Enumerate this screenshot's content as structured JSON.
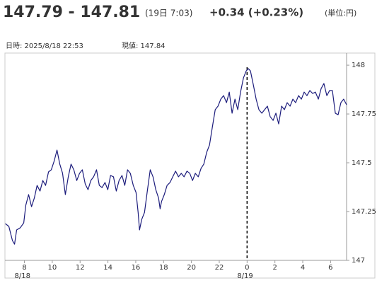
{
  "chart_data": {
    "type": "line",
    "title": "147.79 - 147.81",
    "subtitle": "(19日 7:03)",
    "change": "+0.34 (+0.23%)",
    "unit": "(単位:円)",
    "info_time": "日時: 2025/8/18 22:53",
    "info_price": "現値: 147.84",
    "xlim": [
      6.6,
      31.15
    ],
    "ylim": [
      147,
      148.062
    ],
    "xticks": [
      8,
      10,
      12,
      14,
      16,
      18,
      20,
      22,
      {
        "value": 24,
        "label": "0"
      },
      {
        "value": 26,
        "label": "2"
      },
      {
        "value": 28,
        "label": "4"
      },
      {
        "value": 30,
        "label": "6"
      }
    ],
    "date_labels": [
      {
        "value": 8,
        "label": "8/18"
      },
      {
        "value": 24,
        "label": "8/19"
      }
    ],
    "day_divider": 24,
    "yticks": [
      147,
      147.25,
      147.5,
      147.75,
      148
    ],
    "series": [
      {
        "color": "#1c1c7c",
        "x": [
          6.63,
          6.88,
          7.14,
          7.29,
          7.44,
          7.7,
          7.95,
          8.1,
          8.3,
          8.51,
          8.71,
          8.91,
          9.12,
          9.32,
          9.52,
          9.73,
          9.93,
          10.13,
          10.34,
          10.54,
          10.74,
          10.94,
          11.15,
          11.35,
          11.55,
          11.76,
          11.96,
          12.16,
          12.37,
          12.57,
          12.77,
          12.97,
          13.18,
          13.38,
          13.58,
          13.79,
          13.99,
          14.19,
          14.4,
          14.6,
          14.8,
          15.01,
          15.21,
          15.41,
          15.61,
          15.82,
          16.02,
          16.17,
          16.27,
          16.43,
          16.63,
          16.83,
          17.04,
          17.24,
          17.44,
          17.64,
          17.75,
          17.85,
          18.05,
          18.25,
          18.46,
          18.66,
          18.86,
          19.07,
          19.27,
          19.47,
          19.68,
          19.88,
          20.08,
          20.28,
          20.49,
          20.69,
          20.89,
          21.1,
          21.3,
          21.5,
          21.71,
          21.91,
          22.11,
          22.31,
          22.52,
          22.72,
          22.92,
          23.13,
          23.33,
          23.53,
          23.74,
          23.94,
          24.09,
          24.24,
          24.45,
          24.65,
          24.85,
          25.06,
          25.26,
          25.46,
          25.66,
          25.87,
          26.07,
          26.27,
          26.48,
          26.68,
          26.88,
          27.09,
          27.29,
          27.49,
          27.7,
          27.9,
          28.1,
          28.3,
          28.51,
          28.71,
          28.91,
          29.12,
          29.32,
          29.52,
          29.73,
          29.93,
          30.13,
          30.34,
          30.54,
          30.74,
          30.94,
          31.15
        ],
        "values": [
          147.188,
          147.174,
          147.101,
          147.083,
          147.156,
          147.167,
          147.192,
          147.283,
          147.337,
          147.275,
          147.319,
          147.384,
          147.355,
          147.409,
          147.384,
          147.453,
          147.464,
          147.507,
          147.565,
          147.493,
          147.446,
          147.337,
          147.428,
          147.493,
          147.464,
          147.409,
          147.446,
          147.464,
          147.391,
          147.362,
          147.409,
          147.428,
          147.464,
          147.384,
          147.373,
          147.399,
          147.362,
          147.435,
          147.428,
          147.355,
          147.409,
          147.435,
          147.384,
          147.464,
          147.446,
          147.384,
          147.348,
          147.246,
          147.156,
          147.21,
          147.246,
          147.355,
          147.464,
          147.428,
          147.362,
          147.319,
          147.264,
          147.301,
          147.337,
          147.384,
          147.399,
          147.428,
          147.457,
          147.428,
          147.446,
          147.428,
          147.457,
          147.446,
          147.409,
          147.446,
          147.428,
          147.471,
          147.493,
          147.554,
          147.591,
          147.681,
          147.772,
          147.79,
          147.826,
          147.844,
          147.808,
          147.862,
          147.754,
          147.826,
          147.772,
          147.862,
          147.935,
          147.971,
          147.982,
          147.971,
          147.899,
          147.826,
          147.772,
          147.754,
          147.772,
          147.79,
          147.736,
          147.717,
          147.754,
          147.699,
          147.79,
          147.772,
          147.808,
          147.79,
          147.826,
          147.808,
          147.844,
          147.826,
          147.862,
          147.844,
          147.87,
          147.855,
          147.862,
          147.826,
          147.88,
          147.906,
          147.844,
          147.87,
          147.87,
          147.754,
          147.746,
          147.808,
          147.826,
          147.797
        ]
      }
    ]
  }
}
